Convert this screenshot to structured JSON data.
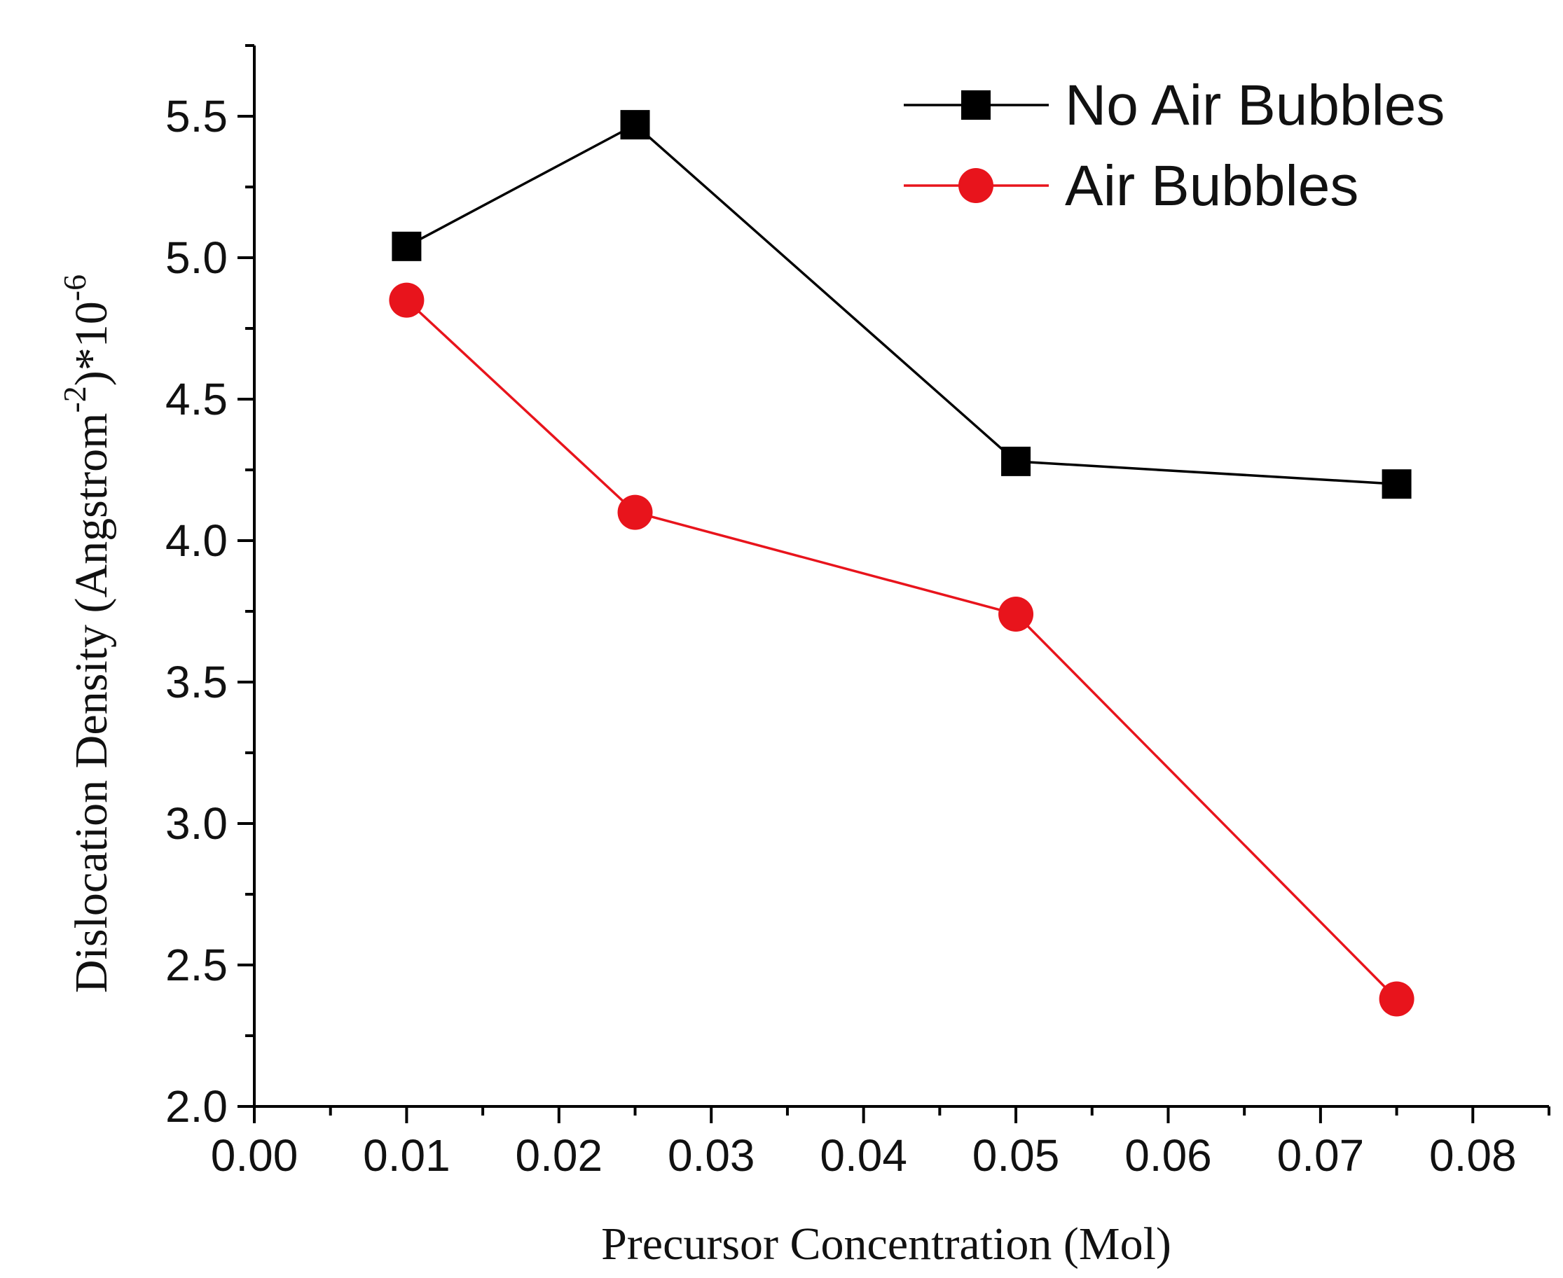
{
  "chart_data": {
    "type": "line",
    "title": "",
    "xlabel": "Precursor Concentration (Mol)",
    "ylabel": {
      "prefix": "Dislocation Density (Angstrom",
      "exponent": "-2",
      "suffix": ")*10",
      "suffix_exponent": "-6"
    },
    "xlim": [
      0.0,
      0.085
    ],
    "ylim": [
      2.0,
      5.75
    ],
    "xticks": [
      "0.00",
      "0.01",
      "0.02",
      "0.03",
      "0.04",
      "0.05",
      "0.06",
      "0.07",
      "0.08"
    ],
    "xtick_values": [
      0.0,
      0.01,
      0.02,
      0.03,
      0.04,
      0.05,
      0.06,
      0.07,
      0.08
    ],
    "yticks": [
      "2.0",
      "2.5",
      "3.0",
      "3.5",
      "4.0",
      "4.5",
      "5.0",
      "5.5"
    ],
    "ytick_values": [
      2.0,
      2.5,
      3.0,
      3.5,
      4.0,
      4.5,
      5.0,
      5.5
    ],
    "grid": false,
    "legend_position": "top-right",
    "series": [
      {
        "name": "No Air Bubbles",
        "marker": "square",
        "color": "#000000",
        "x": [
          0.01,
          0.025,
          0.05,
          0.075
        ],
        "values": [
          5.04,
          5.47,
          4.28,
          4.2
        ]
      },
      {
        "name": "Air Bubbles",
        "marker": "circle",
        "color": "#e8141c",
        "x": [
          0.01,
          0.025,
          0.05,
          0.075
        ],
        "values": [
          4.85,
          4.1,
          3.74,
          2.38
        ]
      }
    ]
  }
}
